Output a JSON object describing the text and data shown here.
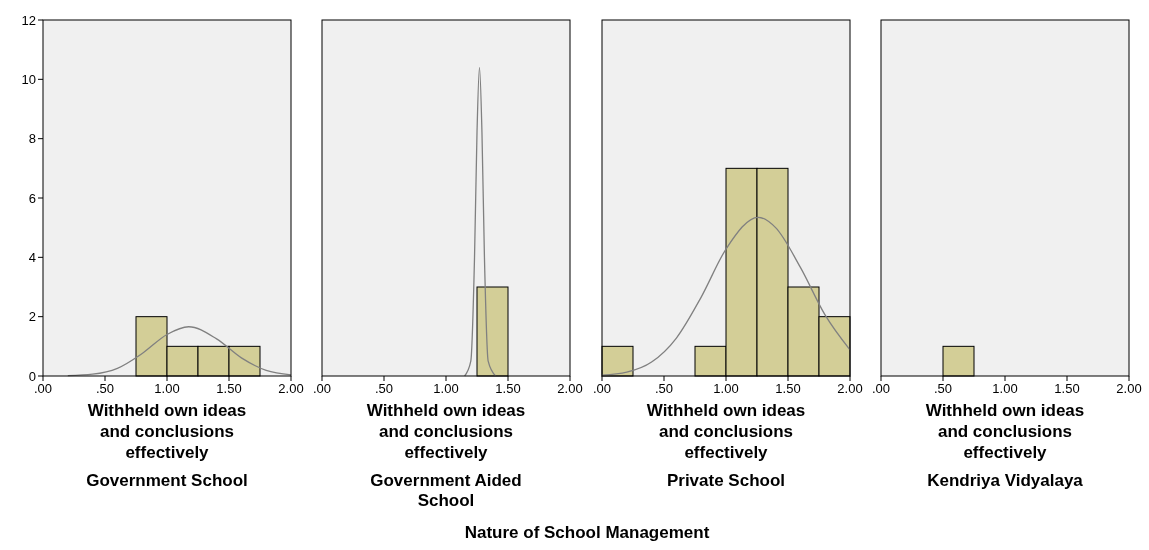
{
  "chart_data": [
    {
      "type": "histogram",
      "title": "Government School",
      "xlabel": "Withheld own ideas and conclusions effectively",
      "annotations": [
        "Nature of School Management"
      ],
      "bins": [
        0,
        0.25,
        0.5,
        0.75,
        1.0,
        1.25,
        1.5,
        1.75,
        2.0
      ],
      "values": [
        0,
        0,
        0,
        2,
        1,
        1,
        1,
        0
      ],
      "color": "#d3ce97",
      "xlim": [
        0,
        2
      ],
      "ylim": [
        0,
        12
      ],
      "xticks": [
        {
          "value": 0,
          "label": ".00"
        },
        {
          "value": 0.5,
          "label": ".50"
        },
        {
          "value": 1,
          "label": "1.00"
        },
        {
          "value": 1.5,
          "label": "1.50"
        },
        {
          "value": 2,
          "label": "2.00"
        }
      ],
      "yticks": [
        0,
        2,
        4,
        6,
        8,
        10,
        12
      ],
      "grid": false,
      "legend": false,
      "series": [
        {
          "type": "line",
          "color": "#808080",
          "x": [
            0.2,
            0.4,
            0.6,
            0.8,
            1.0,
            1.175,
            1.4,
            1.6,
            1.8,
            2.0
          ],
          "values": [
            0.01,
            0.06,
            0.26,
            0.76,
            1.4,
            1.66,
            1.25,
            0.61,
            0.19,
            0.04
          ]
        }
      ]
    },
    {
      "type": "histogram",
      "title": "Government Aided School",
      "xlabel": "Withheld own ideas and conclusions effectively",
      "bins": [
        0,
        0.25,
        0.5,
        0.75,
        1.0,
        1.25,
        1.5,
        1.75,
        2.0
      ],
      "values": [
        0,
        0,
        0,
        0,
        0,
        3,
        0,
        0
      ],
      "color": "#d3ce97",
      "xlim": [
        0,
        2
      ],
      "ylim": [
        0,
        12
      ],
      "xticks": [
        {
          "value": 0,
          "label": ".00"
        },
        {
          "value": 0.5,
          "label": ".50"
        },
        {
          "value": 1,
          "label": "1.00"
        },
        {
          "value": 1.5,
          "label": "1.50"
        },
        {
          "value": 2,
          "label": "2.00"
        }
      ],
      "tick_labels": "x",
      "grid": false,
      "legend": false,
      "series": [
        {
          "type": "line",
          "color": "#808080",
          "x": [
            1.15,
            1.2,
            1.23,
            1.25,
            1.27,
            1.29,
            1.31,
            1.34,
            1.4
          ],
          "values": [
            0,
            0.5,
            4.0,
            8.2,
            10.4,
            8.2,
            4.0,
            0.5,
            0
          ]
        }
      ]
    },
    {
      "type": "histogram",
      "title": "Private School",
      "xlabel": "Withheld own ideas and conclusions effectively",
      "bins": [
        0,
        0.25,
        0.5,
        0.75,
        1.0,
        1.25,
        1.5,
        1.75,
        2.0
      ],
      "values": [
        1,
        0,
        0,
        1,
        7,
        7,
        3,
        2
      ],
      "color": "#d3ce97",
      "xlim": [
        0,
        2
      ],
      "ylim": [
        0,
        12
      ],
      "xticks": [
        {
          "value": 0,
          "label": ".00"
        },
        {
          "value": 0.5,
          "label": ".50"
        },
        {
          "value": 1,
          "label": "1.00"
        },
        {
          "value": 1.5,
          "label": "1.50"
        },
        {
          "value": 2,
          "label": "2.00"
        }
      ],
      "tick_labels": "x",
      "grid": false,
      "legend": false,
      "series": [
        {
          "type": "line",
          "color": "#808080",
          "x": [
            0,
            0.2,
            0.4,
            0.6,
            0.8,
            1.0,
            1.26,
            1.4,
            1.6,
            1.8,
            2.0
          ],
          "values": [
            0.03,
            0.13,
            0.47,
            1.28,
            2.66,
            4.28,
            5.35,
            5.0,
            3.66,
            2.05,
            0.88
          ]
        }
      ]
    },
    {
      "type": "histogram",
      "title": "Kendriya Vidyalaya",
      "xlabel": "Withheld own ideas and conclusions effectively",
      "bins": [
        0,
        0.25,
        0.5,
        0.75,
        1.0,
        1.25,
        1.5,
        1.75,
        2.0
      ],
      "values": [
        0,
        0,
        1,
        0,
        0,
        0,
        0,
        0
      ],
      "color": "#d3ce97",
      "xlim": [
        0,
        2
      ],
      "ylim": [
        0,
        12
      ],
      "xticks": [
        {
          "value": 0,
          "label": ".00"
        },
        {
          "value": 0.5,
          "label": ".50"
        },
        {
          "value": 1,
          "label": "1.00"
        },
        {
          "value": 1.5,
          "label": "1.50"
        },
        {
          "value": 2,
          "label": "2.00"
        }
      ],
      "tick_labels": "x",
      "grid": false,
      "legend": false
    }
  ]
}
